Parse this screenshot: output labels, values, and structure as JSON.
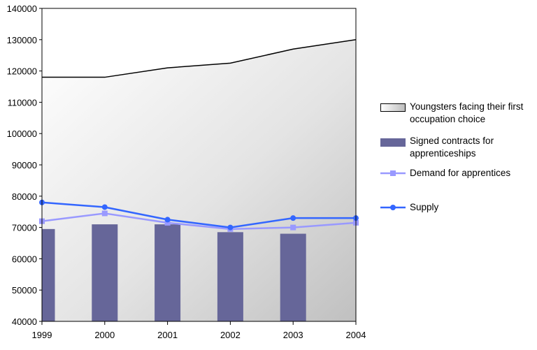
{
  "chart_data": {
    "type": "area",
    "categories": [
      "1999",
      "2000",
      "2001",
      "2002",
      "2003",
      "2004"
    ],
    "ylim": [
      40000,
      140000
    ],
    "yticks": [
      40000,
      50000,
      60000,
      70000,
      80000,
      90000,
      100000,
      110000,
      120000,
      130000,
      140000
    ],
    "series": [
      {
        "name": "Youngsters facing their first occupation choice",
        "type": "area",
        "values": [
          118000,
          118000,
          121000,
          122500,
          127000,
          130000
        ]
      },
      {
        "name": "Signed contracts for apprenticeships",
        "type": "bar",
        "values": [
          69500,
          71000,
          71000,
          68500,
          68000,
          null
        ],
        "color": "#666699"
      },
      {
        "name": "Demand for apprentices",
        "type": "line",
        "values": [
          72000,
          74500,
          71500,
          69500,
          70000,
          71500
        ],
        "color": "#9999ff"
      },
      {
        "name": "Supply",
        "type": "line",
        "values": [
          78000,
          76500,
          72500,
          70000,
          73000,
          73000
        ],
        "color": "#3366ff"
      }
    ],
    "grid": false,
    "legend_position": "right"
  },
  "legend": [
    {
      "label": "Youngsters facing their first\noccupation choice",
      "icon": "gradient-box"
    },
    {
      "label": "Signed contracts for\napprenticeships",
      "icon": "bar-box"
    },
    {
      "label": "Demand for apprentices",
      "icon": "line-square-marker"
    },
    {
      "label": "Supply",
      "icon": "line-circle-marker"
    }
  ]
}
